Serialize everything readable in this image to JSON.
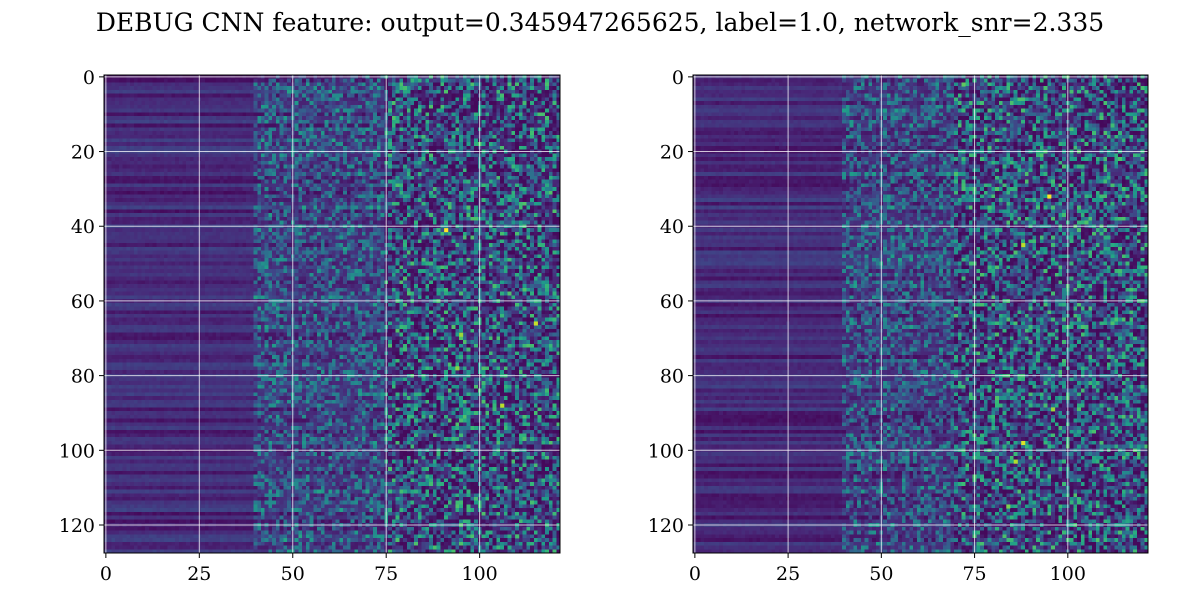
{
  "figure": {
    "title": "DEBUG CNN feature: output=0.345947265625, label=1.0, network_snr=2.335"
  },
  "colormap": {
    "name": "viridis",
    "stops": [
      "#440154",
      "#482878",
      "#3e4989",
      "#31688e",
      "#26828e",
      "#1f9e89",
      "#35b779",
      "#6ece58",
      "#b5de2b",
      "#fde725"
    ]
  },
  "chart_data": [
    {
      "type": "heatmap",
      "title": "",
      "xlabel": "",
      "ylabel": "",
      "rows": 128,
      "cols": 122,
      "xlim": [
        -0.5,
        121.5
      ],
      "ylim": [
        127.5,
        -0.5
      ],
      "xticks": [
        0,
        25,
        50,
        75,
        100
      ],
      "yticks": [
        0,
        20,
        40,
        60,
        80,
        100,
        120
      ],
      "xtick_labels": [
        "0",
        "25",
        "50",
        "75",
        "100"
      ],
      "ytick_labels": [
        "0",
        "20",
        "40",
        "60",
        "80",
        "100",
        "120"
      ],
      "grid": true,
      "grid_color": "#ffffff",
      "value_range": [
        0,
        1
      ],
      "column_mean_levels": [
        {
          "col_from": 0,
          "col_to": 40,
          "mean": 0.08
        },
        {
          "col_from": 40,
          "col_to": 75,
          "mean": 0.2
        },
        {
          "col_from": 75,
          "col_to": 121,
          "mean": 0.35
        }
      ],
      "bright_cells": [
        {
          "row": 41,
          "col": 91,
          "value": 1.0
        },
        {
          "row": 66,
          "col": 115,
          "value": 0.92
        },
        {
          "row": 88,
          "col": 106,
          "value": 0.9
        },
        {
          "row": 69,
          "col": 95,
          "value": 0.85
        },
        {
          "row": 78,
          "col": 94,
          "value": 0.82
        },
        {
          "row": 123,
          "col": 110,
          "value": 0.7
        }
      ]
    },
    {
      "type": "heatmap",
      "title": "",
      "xlabel": "",
      "ylabel": "",
      "rows": 128,
      "cols": 122,
      "xlim": [
        -0.5,
        121.5
      ],
      "ylim": [
        127.5,
        -0.5
      ],
      "xticks": [
        0,
        25,
        50,
        75,
        100
      ],
      "yticks": [
        0,
        20,
        40,
        60,
        80,
        100,
        120
      ],
      "xtick_labels": [
        "0",
        "25",
        "50",
        "75",
        "100"
      ],
      "ytick_labels": [
        "0",
        "20",
        "40",
        "60",
        "80",
        "100",
        "120"
      ],
      "grid": true,
      "grid_color": "#ffffff",
      "value_range": [
        0,
        1
      ],
      "column_mean_levels": [
        {
          "col_from": 0,
          "col_to": 40,
          "mean": 0.08
        },
        {
          "col_from": 40,
          "col_to": 70,
          "mean": 0.2
        },
        {
          "col_from": 70,
          "col_to": 121,
          "mean": 0.38
        }
      ],
      "bright_cells": [
        {
          "row": 32,
          "col": 95,
          "value": 1.0
        },
        {
          "row": 98,
          "col": 88,
          "value": 0.95
        },
        {
          "row": 45,
          "col": 88,
          "value": 0.9
        },
        {
          "row": 103,
          "col": 86,
          "value": 0.88
        },
        {
          "row": 89,
          "col": 96,
          "value": 0.85
        },
        {
          "row": 115,
          "col": 84,
          "value": 0.8
        },
        {
          "row": 2,
          "col": 72,
          "value": 0.75
        }
      ]
    }
  ]
}
